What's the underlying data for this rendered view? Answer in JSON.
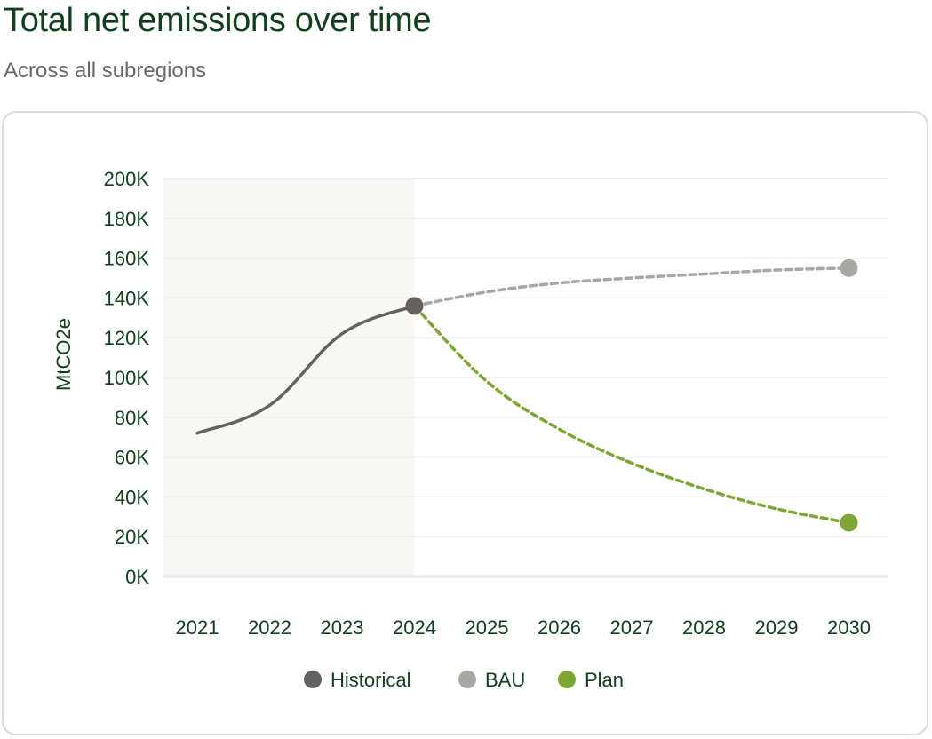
{
  "header": {
    "title": "Total net emissions over time",
    "subtitle": "Across all subregions"
  },
  "colors": {
    "historical": "#66615e",
    "bau": "#aaa6a2",
    "plan": "#7ea637",
    "historical_band": "#f8f8f3",
    "grid": "#ececec",
    "text": "#12401f"
  },
  "chart_data": {
    "type": "line",
    "ylabel": "MtCO2e",
    "xlabel": "",
    "ylim": [
      0,
      200000
    ],
    "y_ticks": [
      0,
      20000,
      40000,
      60000,
      80000,
      100000,
      120000,
      140000,
      160000,
      180000,
      200000
    ],
    "y_tick_labels": [
      "0K",
      "20K",
      "40K",
      "60K",
      "80K",
      "100K",
      "120K",
      "140K",
      "160K",
      "180K",
      "200K"
    ],
    "categories": [
      "2021",
      "2022",
      "2023",
      "2024",
      "2025",
      "2026",
      "2027",
      "2028",
      "2029",
      "2030"
    ],
    "historical_range": [
      "2021",
      "2024"
    ],
    "grid": true,
    "legend_position": "bottom-center",
    "series": [
      {
        "name": "Historical",
        "style": "solid",
        "color_key": "historical",
        "x": [
          "2021",
          "2022",
          "2023",
          "2024"
        ],
        "values": [
          72000,
          86000,
          122000,
          136000
        ]
      },
      {
        "name": "BAU",
        "style": "dashed",
        "color_key": "bau",
        "x": [
          "2024",
          "2025",
          "2026",
          "2027",
          "2028",
          "2029",
          "2030"
        ],
        "values": [
          136000,
          143000,
          147500,
          150000,
          152000,
          154000,
          155000
        ]
      },
      {
        "name": "Plan",
        "style": "dashed",
        "color_key": "plan",
        "x": [
          "2024",
          "2025",
          "2026",
          "2027",
          "2028",
          "2029",
          "2030"
        ],
        "values": [
          136000,
          98000,
          74000,
          57000,
          44000,
          34000,
          27000
        ]
      }
    ]
  }
}
